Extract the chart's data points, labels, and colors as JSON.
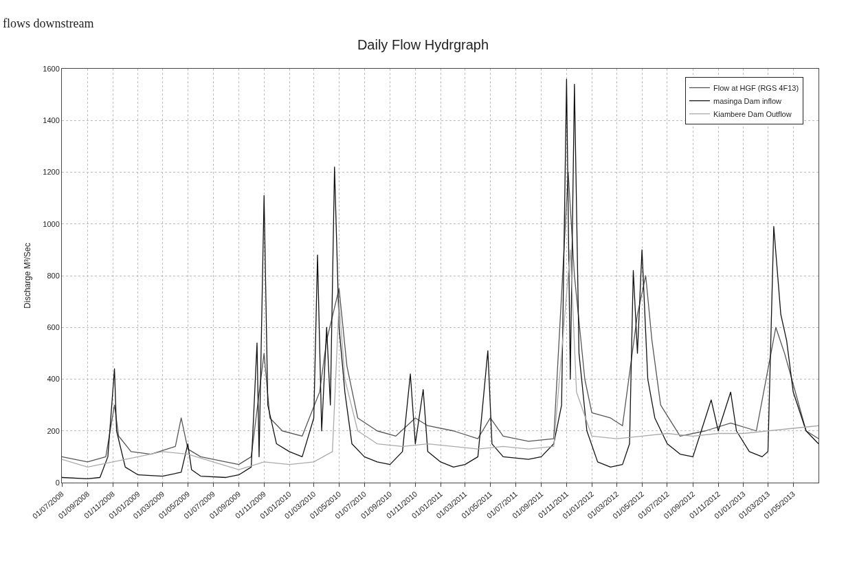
{
  "chart_data": {
    "type": "line",
    "title": "Daily Flow Hydrgraph",
    "ylabel": "Discharge M³/Sec",
    "annotations": [
      "flows downstream"
    ],
    "xlim": [
      "2008-07-01",
      "2013-07-01"
    ],
    "xticks": [
      {
        "value": "2008-07-01",
        "label": "01/07/2008"
      },
      {
        "value": "2008-09-01",
        "label": "01/09/2008"
      },
      {
        "value": "2008-11-01",
        "label": "01/11/2008"
      },
      {
        "value": "2009-01-01",
        "label": "01/01/2009"
      },
      {
        "value": "2009-03-01",
        "label": "01/03/2009"
      },
      {
        "value": "2009-05-01",
        "label": "01/05/2009"
      },
      {
        "value": "2009-07-01",
        "label": "01/07/2009"
      },
      {
        "value": "2009-09-01",
        "label": "01/09/2009"
      },
      {
        "value": "2009-11-01",
        "label": "01/11/2009"
      },
      {
        "value": "2010-01-01",
        "label": "01/01/2010"
      },
      {
        "value": "2010-03-01",
        "label": "01/03/2010"
      },
      {
        "value": "2010-05-01",
        "label": "01/05/2010"
      },
      {
        "value": "2010-07-01",
        "label": "01/07/2010"
      },
      {
        "value": "2010-09-01",
        "label": "01/09/2010"
      },
      {
        "value": "2010-11-01",
        "label": "01/11/2010"
      },
      {
        "value": "2011-01-01",
        "label": "01/01/2011"
      },
      {
        "value": "2011-03-01",
        "label": "01/03/2011"
      },
      {
        "value": "2011-05-01",
        "label": "01/05/2011"
      },
      {
        "value": "2011-07-01",
        "label": "01/07/2011"
      },
      {
        "value": "2011-09-01",
        "label": "01/09/2011"
      },
      {
        "value": "2011-11-01",
        "label": "01/11/2011"
      },
      {
        "value": "2012-01-01",
        "label": "01/01/2012"
      },
      {
        "value": "2012-03-01",
        "label": "01/03/2012"
      },
      {
        "value": "2012-05-01",
        "label": "01/05/2012"
      },
      {
        "value": "2012-07-01",
        "label": "01/07/2012"
      },
      {
        "value": "2012-09-01",
        "label": "01/09/2012"
      },
      {
        "value": "2012-11-01",
        "label": "01/11/2012"
      },
      {
        "value": "2013-01-01",
        "label": "01/01/2013"
      },
      {
        "value": "2013-03-01",
        "label": "01/03/2013"
      },
      {
        "value": "2013-05-01",
        "label": "01/05/2013"
      }
    ],
    "ylim": [
      0,
      1600
    ],
    "yticks": [
      0,
      200,
      400,
      600,
      800,
      1000,
      1200,
      1400,
      1600
    ],
    "grid": true,
    "legend": "top right",
    "series": [
      {
        "name": "Flow at HGF (RGS 4F13)",
        "color": "#555555",
        "x": [
          "2008-07-01",
          "2008-09-01",
          "2008-10-15",
          "2008-11-05",
          "2008-11-15",
          "2008-12-15",
          "2009-02-01",
          "2009-04-01",
          "2009-04-15",
          "2009-05-01",
          "2009-06-01",
          "2009-08-01",
          "2009-09-01",
          "2009-10-01",
          "2009-11-01",
          "2009-11-15",
          "2009-12-15",
          "2010-02-01",
          "2010-03-15",
          "2010-04-01",
          "2010-05-01",
          "2010-05-20",
          "2010-06-15",
          "2010-08-01",
          "2010-09-15",
          "2010-11-01",
          "2010-12-01",
          "2011-02-01",
          "2011-04-01",
          "2011-05-01",
          "2011-06-01",
          "2011-08-01",
          "2011-10-01",
          "2011-11-05",
          "2011-11-20",
          "2011-12-15",
          "2012-01-01",
          "2012-02-15",
          "2012-03-15",
          "2012-04-20",
          "2012-05-10",
          "2012-05-25",
          "2012-06-15",
          "2012-08-01",
          "2012-10-01",
          "2012-12-01",
          "2013-02-01",
          "2013-03-20",
          "2013-04-10",
          "2013-05-01",
          "2013-06-01",
          "2013-07-01"
        ],
        "values": [
          100,
          80,
          100,
          300,
          180,
          120,
          110,
          140,
          250,
          130,
          100,
          80,
          70,
          100,
          500,
          250,
          200,
          180,
          350,
          550,
          750,
          450,
          250,
          200,
          180,
          250,
          220,
          200,
          170,
          250,
          180,
          160,
          170,
          1200,
          800,
          400,
          270,
          250,
          220,
          650,
          800,
          550,
          300,
          180,
          200,
          230,
          200,
          600,
          500,
          380,
          200,
          170
        ]
      },
      {
        "name": "masinga Dam inflow",
        "color": "#111111",
        "x": [
          "2008-07-01",
          "2008-09-01",
          "2008-10-01",
          "2008-10-20",
          "2008-11-05",
          "2008-11-10",
          "2008-12-01",
          "2009-01-01",
          "2009-03-01",
          "2009-04-15",
          "2009-05-01",
          "2009-05-10",
          "2009-06-01",
          "2009-08-01",
          "2009-09-01",
          "2009-10-01",
          "2009-10-15",
          "2009-10-20",
          "2009-11-01",
          "2009-11-10",
          "2009-12-01",
          "2010-01-01",
          "2010-02-01",
          "2010-03-01",
          "2010-03-10",
          "2010-03-20",
          "2010-04-01",
          "2010-04-10",
          "2010-04-20",
          "2010-05-01",
          "2010-05-15",
          "2010-06-01",
          "2010-07-01",
          "2010-08-01",
          "2010-09-01",
          "2010-10-01",
          "2010-10-20",
          "2010-11-01",
          "2010-11-20",
          "2010-12-01",
          "2011-01-01",
          "2011-02-01",
          "2011-03-01",
          "2011-04-01",
          "2011-04-25",
          "2011-05-05",
          "2011-06-01",
          "2011-08-01",
          "2011-09-01",
          "2011-10-01",
          "2011-10-20",
          "2011-11-01",
          "2011-11-10",
          "2011-11-20",
          "2011-12-01",
          "2011-12-20",
          "2012-01-15",
          "2012-02-15",
          "2012-03-15",
          "2012-04-01",
          "2012-04-10",
          "2012-04-20",
          "2012-05-01",
          "2012-05-15",
          "2012-06-01",
          "2012-07-01",
          "2012-08-01",
          "2012-09-01",
          "2012-10-01",
          "2012-10-15",
          "2012-11-01",
          "2012-12-01",
          "2012-12-15",
          "2013-01-15",
          "2013-02-15",
          "2013-03-01",
          "2013-03-15",
          "2013-04-01",
          "2013-04-15",
          "2013-05-01",
          "2013-06-01",
          "2013-07-01"
        ],
        "values": [
          20,
          15,
          20,
          100,
          440,
          200,
          60,
          30,
          25,
          40,
          150,
          50,
          25,
          20,
          30,
          60,
          540,
          100,
          1110,
          300,
          150,
          120,
          100,
          250,
          880,
          200,
          600,
          300,
          1220,
          600,
          350,
          150,
          100,
          80,
          70,
          120,
          420,
          150,
          360,
          120,
          80,
          60,
          70,
          100,
          510,
          150,
          100,
          90,
          100,
          150,
          300,
          1560,
          400,
          1540,
          500,
          200,
          80,
          60,
          70,
          150,
          820,
          500,
          900,
          400,
          250,
          150,
          110,
          100,
          250,
          320,
          200,
          350,
          200,
          120,
          100,
          120,
          990,
          650,
          550,
          350,
          200,
          150
        ]
      },
      {
        "name": "Kiambere Dam Outflow",
        "color": "#aaaaaa",
        "x": [
          "2008-07-01",
          "2008-09-01",
          "2008-11-01",
          "2009-01-01",
          "2009-03-01",
          "2009-05-01",
          "2009-07-01",
          "2009-09-01",
          "2009-11-01",
          "2010-01-01",
          "2010-03-01",
          "2010-04-15",
          "2010-05-01",
          "2010-05-15",
          "2010-06-15",
          "2010-08-01",
          "2010-10-01",
          "2010-12-01",
          "2011-02-01",
          "2011-04-01",
          "2011-06-01",
          "2011-08-01",
          "2011-10-01",
          "2011-11-10",
          "2011-11-25",
          "2012-01-01",
          "2012-03-01",
          "2012-05-01",
          "2012-07-01",
          "2012-09-01",
          "2012-11-01",
          "2013-01-01",
          "2013-03-01",
          "2013-05-01",
          "2013-07-01"
        ],
        "values": [
          90,
          60,
          80,
          100,
          120,
          110,
          80,
          50,
          80,
          70,
          80,
          120,
          700,
          400,
          200,
          150,
          140,
          150,
          140,
          130,
          140,
          130,
          140,
          900,
          350,
          180,
          170,
          180,
          190,
          180,
          190,
          190,
          200,
          210,
          220
        ]
      }
    ]
  }
}
